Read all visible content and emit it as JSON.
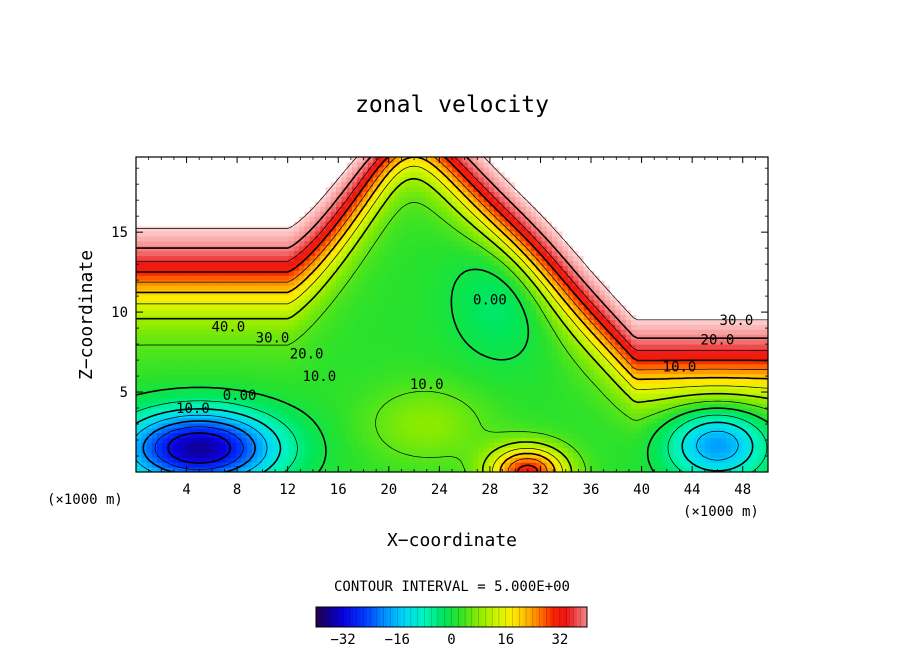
{
  "chart_data": {
    "type": "heatmap",
    "subtype": "filled-contour",
    "title": "zonal velocity",
    "xlabel": "X−coordinate",
    "ylabel": "Z−coordinate",
    "x_units": "(×1000 m)",
    "z_units": "(×1000 m)",
    "x_range": [
      0,
      50
    ],
    "z_range": [
      0,
      19.7
    ],
    "x_ticks": [
      4,
      8,
      12,
      16,
      20,
      24,
      28,
      32,
      36,
      40,
      44,
      48
    ],
    "z_ticks": [
      5,
      10,
      15
    ],
    "contour_interval_text": "CONTOUR INTERVAL = 5.000E+00",
    "contour_interval": 5.0,
    "contour_labels": [
      {
        "text": "40.0",
        "x": 7.3,
        "z": 9.1
      },
      {
        "text": "30.0",
        "x": 10.8,
        "z": 8.4
      },
      {
        "text": "20.0",
        "x": 13.5,
        "z": 7.4
      },
      {
        "text": "10.0",
        "x": 14.5,
        "z": 6.0
      },
      {
        "text": "0.00",
        "x": 8.2,
        "z": 4.8
      },
      {
        "text": "10.0",
        "x": 4.5,
        "z": 4.0
      },
      {
        "text": "10.0",
        "x": 23.0,
        "z": 5.5
      },
      {
        "text": "0.00",
        "x": 28.0,
        "z": 10.8
      },
      {
        "text": "30.0",
        "x": 47.5,
        "z": 9.5
      },
      {
        "text": "20.0",
        "x": 46.0,
        "z": 8.3
      },
      {
        "text": "10.0",
        "x": 43.0,
        "z": 6.6
      }
    ],
    "colorbar": {
      "range": [
        -40,
        40
      ],
      "ticks": [
        -32,
        -16,
        0,
        16,
        32
      ],
      "colormap": "rainbow"
    },
    "features": [
      {
        "x": 5,
        "z": 1.5,
        "value": -35
      },
      {
        "x": 45,
        "z": 2.0,
        "value": -20
      },
      {
        "x": 31,
        "z": 0.5,
        "value": 35
      },
      {
        "x": 29,
        "z": 11,
        "value": 0
      },
      {
        "x": 5,
        "z": 15,
        "value": 45
      },
      {
        "x": 49,
        "z": 15,
        "value": 45
      }
    ]
  }
}
